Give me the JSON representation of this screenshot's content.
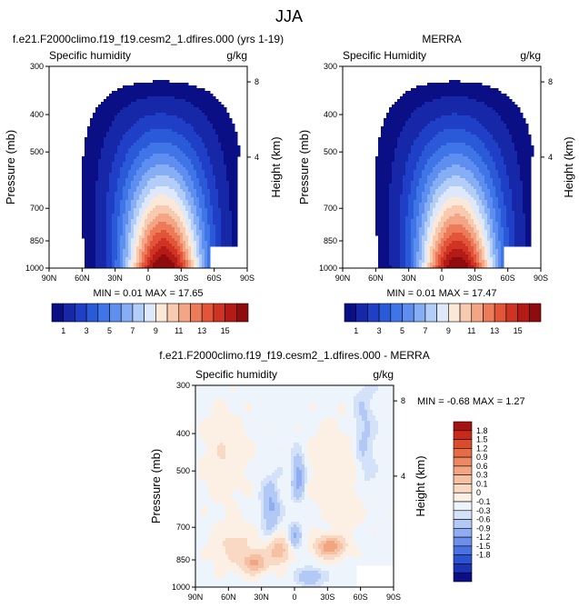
{
  "figure": {
    "title": "JJA"
  },
  "colors": {
    "abs_scale": [
      "#0a0f85",
      "#1628a8",
      "#1e3fc6",
      "#2a5ad8",
      "#3f75e6",
      "#5d8ef0",
      "#86aef5",
      "#b2cdf8",
      "#dde9fb",
      "#fbe8d8",
      "#f8cbb0",
      "#f3a585",
      "#ec7b5a",
      "#e2553a",
      "#cf3324",
      "#b41a16",
      "#8e0c0c"
    ],
    "diff_scale": [
      "#0a0f85",
      "#1a33b5",
      "#2b52d3",
      "#4a71e1",
      "#6c8fe9",
      "#8fadf0",
      "#b3c9f5",
      "#d3e2f9",
      "#eef4fc",
      "#fcefe3",
      "#f9d9c3",
      "#f6c1a3",
      "#f2a583",
      "#ec8963",
      "#e56c45",
      "#da4c2c",
      "#c92a18",
      "#a61111"
    ]
  },
  "chart_data": [
    {
      "type": "heatmap",
      "title": "f.e21.F2000climo.f19_f19.cesm2_1.dfires.000 (yrs 1-19)",
      "left_label": "Specific humidity",
      "right_label": "g/kg",
      "ylabel": "Pressure (mb)",
      "y2label": "Height (km)",
      "x_ticks": [
        "90N",
        "60N",
        "30N",
        "0",
        "30S",
        "60S",
        "90S"
      ],
      "y_ticks": [
        "300",
        "400",
        "500",
        "700",
        "850",
        "1000"
      ],
      "y2_ticks": [
        "8",
        "4"
      ],
      "stats": "MIN =  0.01   MAX = 17.65",
      "colorbar_labels": [
        "1",
        "3",
        "5",
        "7",
        "9",
        "11",
        "13",
        "15"
      ],
      "max_value": 17.65
    },
    {
      "type": "heatmap",
      "title": "MERRA",
      "left_label": "Specific Humidity",
      "right_label": "g/kg",
      "ylabel": "Pressure (mb)",
      "y2label": "Height (km)",
      "x_ticks": [
        "90N",
        "60N",
        "30N",
        "0",
        "30S",
        "60S",
        "90S"
      ],
      "y_ticks": [
        "300",
        "400",
        "500",
        "700",
        "850",
        "1000"
      ],
      "y2_ticks": [
        "8",
        "4"
      ],
      "stats": "MIN =  0.01   MAX = 17.47",
      "colorbar_labels": [
        "1",
        "3",
        "5",
        "7",
        "9",
        "11",
        "13",
        "15"
      ],
      "max_value": 17.47
    },
    {
      "type": "heatmap",
      "title": "f.e21.F2000climo.f19_f19.cesm2_1.dfires.000 - MERRA",
      "left_label": "Specific humidity",
      "right_label": "g/kg",
      "ylabel": "Pressure (mb)",
      "y2label": "Height (km)",
      "x_ticks": [
        "90N",
        "60N",
        "30N",
        "0",
        "30S",
        "60S",
        "90S"
      ],
      "y_ticks": [
        "300",
        "400",
        "500",
        "700",
        "850",
        "1000"
      ],
      "y2_ticks": [
        "8",
        "4"
      ],
      "stats": "MIN = -0.68   MAX =  1.27",
      "colorbar_labels": [
        "1.8",
        "1.5",
        "1.2",
        "0.9",
        "0.6",
        "0.3",
        "0.1",
        "0",
        "-0.1",
        "-0.3",
        "-0.6",
        "-0.9",
        "-1.2",
        "-1.5",
        "-1.8"
      ]
    }
  ]
}
